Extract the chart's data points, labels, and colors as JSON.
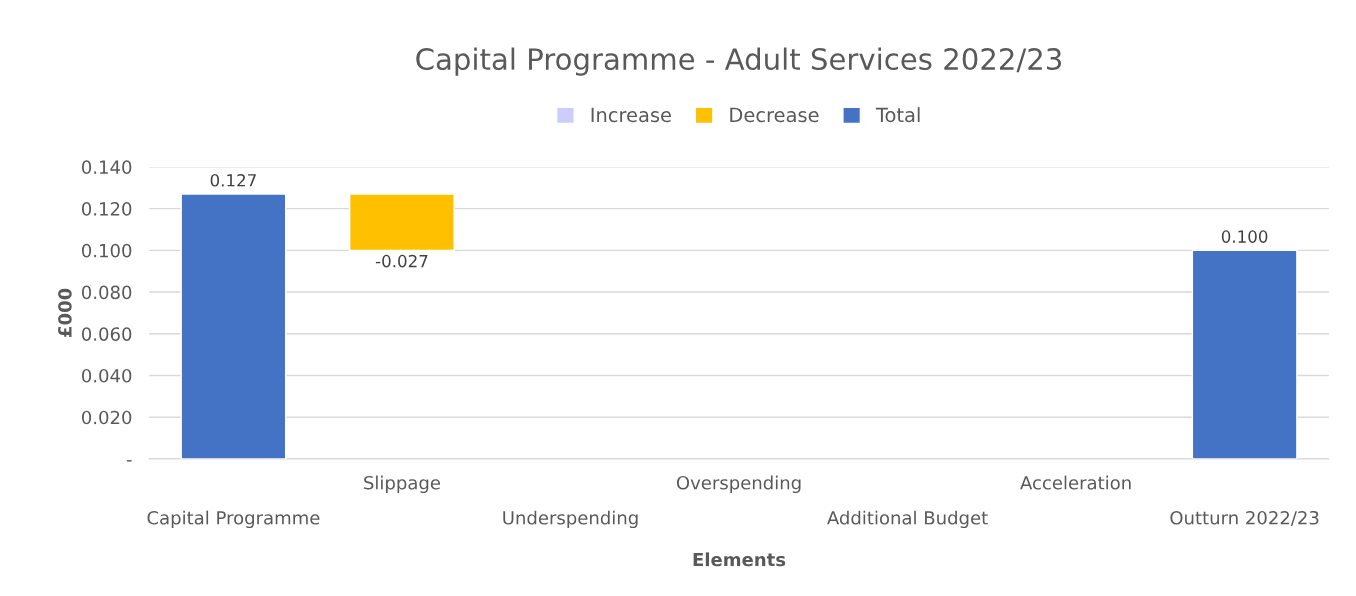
{
  "chart_data": {
    "type": "bar",
    "title": "Capital Programme - Adult Services 2022/23",
    "xlabel": "Elements",
    "ylabel": "£000",
    "categories": [
      "Capital Programme",
      "Slippage",
      "Underspending",
      "Overspending",
      "Additional Budget",
      "Acceleration",
      "Outturn 2022/23"
    ],
    "series": [
      {
        "name": "Increase",
        "color": "#ccccff",
        "values": [
          null,
          null,
          null,
          null,
          null,
          null,
          null
        ]
      },
      {
        "name": "Decrease",
        "color": "#ffc000",
        "values": [
          null,
          -0.027,
          null,
          null,
          null,
          null,
          null
        ],
        "base": [
          null,
          0.127,
          null,
          null,
          null,
          null,
          null
        ],
        "value_labels": [
          null,
          "-0.027",
          null,
          null,
          null,
          null,
          null
        ]
      },
      {
        "name": "Total",
        "color": "#4472c4",
        "values": [
          0.127,
          null,
          null,
          null,
          null,
          null,
          0.1
        ],
        "value_labels": [
          "0.127",
          null,
          null,
          null,
          null,
          null,
          "0.100"
        ]
      }
    ],
    "ylim": [
      0,
      0.14
    ],
    "yticks": [
      {
        "value": 0,
        "label": "-"
      },
      {
        "value": 0.02,
        "label": "0.020"
      },
      {
        "value": 0.04,
        "label": "0.040"
      },
      {
        "value": 0.06,
        "label": "0.060"
      },
      {
        "value": 0.08,
        "label": "0.080"
      },
      {
        "value": 0.1,
        "label": "0.100"
      },
      {
        "value": 0.12,
        "label": "0.120"
      },
      {
        "value": 0.14,
        "label": "0.140"
      }
    ],
    "grid": "y",
    "legend": "top"
  }
}
